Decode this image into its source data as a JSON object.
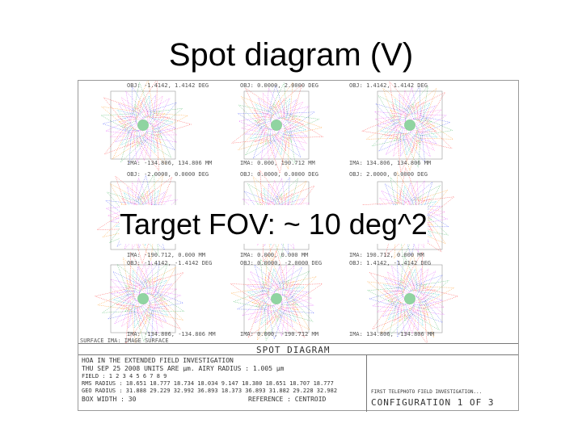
{
  "slide": {
    "title": "Spot diagram (V)",
    "overlay": "Target FOV: ~ 10 deg^2"
  },
  "figure": {
    "field_labels_top": [
      "OBJ: -1.4142, 1.4142 DEG",
      "OBJ: 0.0000, 2.0000 DEG",
      "OBJ: 1.4142, 1.4142 DEG"
    ],
    "ima_labels_top": [
      "IMA: -134.806, 134.806 MM",
      "IMA: 0.000, 190.712 MM",
      "IMA: 134.806, 134.806 MM"
    ],
    "field_labels_mid": [
      "OBJ: -2.0000, 0.0000 DEG",
      "OBJ: 0.0000, 0.0000 DEG",
      "OBJ: 2.0000, 0.0000 DEG"
    ],
    "ima_labels_mid": [
      "IMA: -190.712, 0.000 MM",
      "IMA: 0.000, 0.000 MM",
      "IMA: 190.712, 0.000 MM"
    ],
    "field_labels_low": [
      "OBJ: -1.4142, -1.4142 DEG",
      "OBJ: 0.0000, -2.0000 DEG",
      "OBJ: 1.4142, -1.4142 DEG"
    ],
    "ima_labels_bottom": [
      "IMA: -134.806, -134.806 MM",
      "IMA: 0.000, -190.712 MM",
      "IMA: 134.806, -134.806 MM"
    ],
    "surface_label": "SURFACE IMA: IMAGE SURFACE",
    "panel": {
      "heading": "SPOT DIAGRAM",
      "line1": "HOA IN THE EXTENDED FIELD INVESTIGATION",
      "line2": "THU SEP 25 2008   UNITS ARE µm.   AIRY RADIUS : 1.005 µm",
      "field_row": "FIELD    :    1        2        3        4        5        6        7        8        9",
      "rms_row": "RMS RADIUS :  18.651   18.777   18.734   18.034   9.147   18.380   18.651   18.707   18.777",
      "geo_row": "GEO RADIUS :  31.888   29.229   32.992   36.893   18.373   36.893   31.882   29.228   32.982",
      "box_width": "BOX WIDTH   :   30",
      "reference": "REFERENCE  : CENTROID",
      "right_top": "FIRST TELEPHOTO FIELD INVESTIGATION...",
      "configuration": "CONFIGURATION 1 OF 3"
    }
  }
}
